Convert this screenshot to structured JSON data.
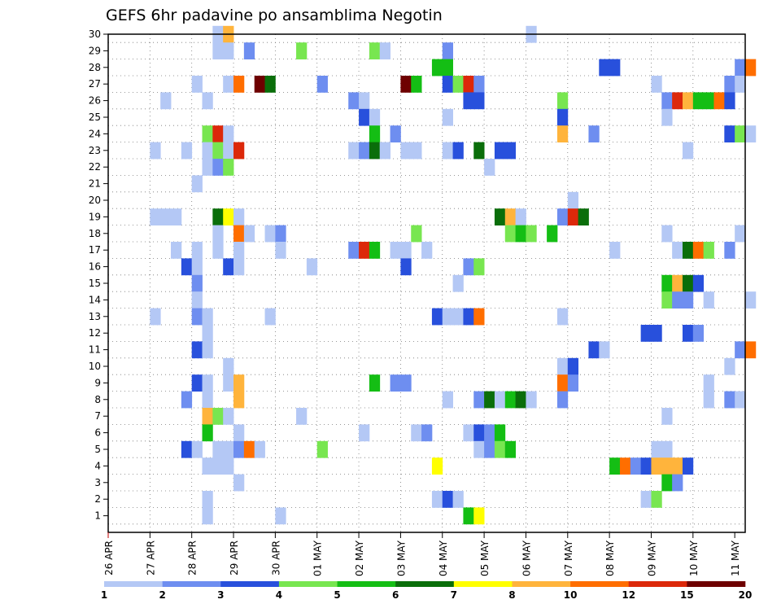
{
  "chart_data": {
    "type": "heatmap",
    "title": "GEFS 6hr padavine po ansamblima Negotin",
    "xlabel": "",
    "ylabel": "",
    "ylim": [
      0,
      30
    ],
    "y_ticks": [
      "1",
      "2",
      "3",
      "4",
      "5",
      "6",
      "7",
      "8",
      "9",
      "10",
      "11",
      "12",
      "13",
      "14",
      "15",
      "16",
      "17",
      "18",
      "19",
      "20",
      "21",
      "22",
      "23",
      "24",
      "25",
      "26",
      "27",
      "28",
      "29",
      "30"
    ],
    "x_labels": [
      "26 APR",
      "27 APR",
      "28 APR",
      "29 APR",
      "30 APR",
      "01 MAY",
      "02 MAY",
      "03 MAY",
      "04 MAY",
      "05 MAY",
      "06 MAY",
      "07 MAY",
      "08 MAY",
      "09 MAY",
      "10 MAY",
      "11 MAY"
    ],
    "x_unit": "6-hour step (4 per day)",
    "x_steps": 61,
    "grid": true,
    "legend": {
      "placement": "bottom",
      "colors": [
        "#b4c8f5",
        "#6e8ef0",
        "#2850dc",
        "#78e650",
        "#14be14",
        "#0a6e0a",
        "#ffff00",
        "#ffb43c",
        "#ff6e00",
        "#dc280a",
        "#6e0000"
      ],
      "boundaries": [
        "1",
        "2",
        "3",
        "4",
        "5",
        "6",
        "7",
        "8",
        "10",
        "12",
        "15",
        "20"
      ]
    },
    "cells": [
      [
        10,
        30,
        1
      ],
      [
        11,
        30,
        8
      ],
      [
        40,
        30,
        1
      ],
      [
        10,
        29,
        1
      ],
      [
        11,
        29,
        1
      ],
      [
        13,
        29,
        2
      ],
      [
        18,
        29,
        4
      ],
      [
        25,
        29,
        4
      ],
      [
        26,
        29,
        1
      ],
      [
        32,
        29,
        2
      ],
      [
        31,
        28,
        5
      ],
      [
        32,
        28,
        5
      ],
      [
        47,
        28,
        3
      ],
      [
        48,
        28,
        3
      ],
      [
        60,
        28,
        2
      ],
      [
        61,
        28,
        9
      ],
      [
        8,
        27,
        1
      ],
      [
        11,
        27,
        1
      ],
      [
        12,
        27,
        9
      ],
      [
        14,
        27,
        11
      ],
      [
        15,
        27,
        6
      ],
      [
        20,
        27,
        2
      ],
      [
        28,
        27,
        11
      ],
      [
        29,
        27,
        5
      ],
      [
        32,
        27,
        3
      ],
      [
        33,
        27,
        4
      ],
      [
        34,
        27,
        10
      ],
      [
        35,
        27,
        2
      ],
      [
        52,
        27,
        1
      ],
      [
        59,
        27,
        2
      ],
      [
        60,
        27,
        1
      ],
      [
        5,
        26,
        1
      ],
      [
        9,
        26,
        1
      ],
      [
        23,
        26,
        2
      ],
      [
        24,
        26,
        1
      ],
      [
        34,
        26,
        3
      ],
      [
        35,
        26,
        3
      ],
      [
        43,
        26,
        4
      ],
      [
        53,
        26,
        2
      ],
      [
        54,
        26,
        10
      ],
      [
        55,
        26,
        8
      ],
      [
        56,
        26,
        5
      ],
      [
        57,
        26,
        5
      ],
      [
        58,
        26,
        9
      ],
      [
        59,
        26,
        3
      ],
      [
        24,
        25,
        3
      ],
      [
        25,
        25,
        1
      ],
      [
        32,
        25,
        1
      ],
      [
        43,
        25,
        3
      ],
      [
        53,
        25,
        1
      ],
      [
        9,
        24,
        4
      ],
      [
        10,
        24,
        10
      ],
      [
        11,
        24,
        1
      ],
      [
        25,
        24,
        5
      ],
      [
        27,
        24,
        2
      ],
      [
        43,
        24,
        8
      ],
      [
        46,
        24,
        2
      ],
      [
        59,
        24,
        3
      ],
      [
        60,
        24,
        4
      ],
      [
        61,
        24,
        1
      ],
      [
        4,
        23,
        1
      ],
      [
        7,
        23,
        1
      ],
      [
        9,
        23,
        1
      ],
      [
        10,
        23,
        4
      ],
      [
        11,
        23,
        1
      ],
      [
        12,
        23,
        10
      ],
      [
        23,
        23,
        1
      ],
      [
        24,
        23,
        2
      ],
      [
        25,
        23,
        6
      ],
      [
        26,
        23,
        1
      ],
      [
        28,
        23,
        1
      ],
      [
        29,
        23,
        1
      ],
      [
        32,
        23,
        1
      ],
      [
        33,
        23,
        3
      ],
      [
        35,
        23,
        6
      ],
      [
        37,
        23,
        3
      ],
      [
        38,
        23,
        3
      ],
      [
        55,
        23,
        1
      ],
      [
        9,
        22,
        1
      ],
      [
        10,
        22,
        2
      ],
      [
        11,
        22,
        4
      ],
      [
        36,
        22,
        1
      ],
      [
        8,
        21,
        1
      ],
      [
        44,
        20,
        1
      ],
      [
        4,
        19,
        1
      ],
      [
        5,
        19,
        1
      ],
      [
        6,
        19,
        1
      ],
      [
        10,
        19,
        6
      ],
      [
        11,
        19,
        7
      ],
      [
        12,
        19,
        1
      ],
      [
        37,
        19,
        6
      ],
      [
        38,
        19,
        8
      ],
      [
        39,
        19,
        1
      ],
      [
        43,
        19,
        2
      ],
      [
        44,
        19,
        10
      ],
      [
        45,
        19,
        6
      ],
      [
        10,
        18,
        1
      ],
      [
        12,
        18,
        9
      ],
      [
        13,
        18,
        1
      ],
      [
        15,
        18,
        1
      ],
      [
        16,
        18,
        2
      ],
      [
        29,
        18,
        4
      ],
      [
        38,
        18,
        4
      ],
      [
        39,
        18,
        5
      ],
      [
        40,
        18,
        4
      ],
      [
        42,
        18,
        5
      ],
      [
        53,
        18,
        1
      ],
      [
        60,
        18,
        1
      ],
      [
        6,
        17,
        1
      ],
      [
        8,
        17,
        1
      ],
      [
        10,
        17,
        1
      ],
      [
        12,
        17,
        1
      ],
      [
        16,
        17,
        1
      ],
      [
        23,
        17,
        2
      ],
      [
        24,
        17,
        10
      ],
      [
        25,
        17,
        5
      ],
      [
        27,
        17,
        1
      ],
      [
        28,
        17,
        1
      ],
      [
        30,
        17,
        1
      ],
      [
        48,
        17,
        1
      ],
      [
        54,
        17,
        1
      ],
      [
        55,
        17,
        6
      ],
      [
        56,
        17,
        9
      ],
      [
        57,
        17,
        4
      ],
      [
        59,
        17,
        2
      ],
      [
        7,
        16,
        3
      ],
      [
        8,
        16,
        1
      ],
      [
        11,
        16,
        3
      ],
      [
        12,
        16,
        1
      ],
      [
        19,
        16,
        1
      ],
      [
        28,
        16,
        3
      ],
      [
        34,
        16,
        2
      ],
      [
        35,
        16,
        4
      ],
      [
        8,
        15,
        2
      ],
      [
        33,
        15,
        1
      ],
      [
        53,
        15,
        5
      ],
      [
        54,
        15,
        8
      ],
      [
        55,
        15,
        6
      ],
      [
        56,
        15,
        3
      ],
      [
        8,
        14,
        1
      ],
      [
        53,
        14,
        4
      ],
      [
        54,
        14,
        2
      ],
      [
        55,
        14,
        2
      ],
      [
        57,
        14,
        1
      ],
      [
        61,
        14,
        1
      ],
      [
        4,
        13,
        1
      ],
      [
        8,
        13,
        2
      ],
      [
        9,
        13,
        1
      ],
      [
        15,
        13,
        1
      ],
      [
        31,
        13,
        3
      ],
      [
        32,
        13,
        1
      ],
      [
        33,
        13,
        1
      ],
      [
        34,
        13,
        3
      ],
      [
        35,
        13,
        9
      ],
      [
        43,
        13,
        1
      ],
      [
        9,
        12,
        1
      ],
      [
        51,
        12,
        3
      ],
      [
        52,
        12,
        3
      ],
      [
        55,
        12,
        3
      ],
      [
        56,
        12,
        2
      ],
      [
        8,
        11,
        3
      ],
      [
        9,
        11,
        1
      ],
      [
        46,
        11,
        3
      ],
      [
        47,
        11,
        1
      ],
      [
        60,
        11,
        2
      ],
      [
        61,
        11,
        9
      ],
      [
        11,
        10,
        1
      ],
      [
        43,
        10,
        1
      ],
      [
        44,
        10,
        3
      ],
      [
        59,
        10,
        1
      ],
      [
        8,
        9,
        3
      ],
      [
        9,
        9,
        1
      ],
      [
        11,
        9,
        1
      ],
      [
        12,
        9,
        8
      ],
      [
        25,
        9,
        5
      ],
      [
        27,
        9,
        2
      ],
      [
        28,
        9,
        2
      ],
      [
        43,
        9,
        9
      ],
      [
        44,
        9,
        2
      ],
      [
        57,
        9,
        1
      ],
      [
        7,
        8,
        2
      ],
      [
        9,
        8,
        1
      ],
      [
        12,
        8,
        8
      ],
      [
        32,
        8,
        1
      ],
      [
        35,
        8,
        2
      ],
      [
        36,
        8,
        6
      ],
      [
        37,
        8,
        1
      ],
      [
        38,
        8,
        5
      ],
      [
        39,
        8,
        6
      ],
      [
        40,
        8,
        1
      ],
      [
        43,
        8,
        2
      ],
      [
        57,
        8,
        1
      ],
      [
        59,
        8,
        2
      ],
      [
        60,
        8,
        1
      ],
      [
        9,
        7,
        8
      ],
      [
        10,
        7,
        4
      ],
      [
        11,
        7,
        1
      ],
      [
        18,
        7,
        1
      ],
      [
        53,
        7,
        1
      ],
      [
        9,
        6,
        5
      ],
      [
        12,
        6,
        1
      ],
      [
        24,
        6,
        1
      ],
      [
        29,
        6,
        1
      ],
      [
        30,
        6,
        2
      ],
      [
        34,
        6,
        1
      ],
      [
        35,
        6,
        3
      ],
      [
        36,
        6,
        2
      ],
      [
        37,
        6,
        5
      ],
      [
        7,
        5,
        3
      ],
      [
        8,
        5,
        1
      ],
      [
        10,
        5,
        1
      ],
      [
        11,
        5,
        1
      ],
      [
        12,
        5,
        2
      ],
      [
        13,
        5,
        9
      ],
      [
        14,
        5,
        1
      ],
      [
        20,
        5,
        4
      ],
      [
        35,
        5,
        1
      ],
      [
        36,
        5,
        2
      ],
      [
        37,
        5,
        4
      ],
      [
        38,
        5,
        5
      ],
      [
        52,
        5,
        1
      ],
      [
        53,
        5,
        1
      ],
      [
        9,
        4,
        1
      ],
      [
        10,
        4,
        1
      ],
      [
        11,
        4,
        1
      ],
      [
        31,
        4,
        7
      ],
      [
        48,
        4,
        5
      ],
      [
        49,
        4,
        9
      ],
      [
        50,
        4,
        2
      ],
      [
        51,
        4,
        3
      ],
      [
        52,
        4,
        8
      ],
      [
        53,
        4,
        8
      ],
      [
        54,
        4,
        8
      ],
      [
        55,
        4,
        3
      ],
      [
        12,
        3,
        1
      ],
      [
        53,
        3,
        5
      ],
      [
        54,
        3,
        2
      ],
      [
        9,
        2,
        1
      ],
      [
        31,
        2,
        1
      ],
      [
        32,
        2,
        3
      ],
      [
        33,
        2,
        1
      ],
      [
        51,
        2,
        1
      ],
      [
        52,
        2,
        4
      ],
      [
        9,
        1,
        1
      ],
      [
        16,
        1,
        1
      ],
      [
        34,
        1,
        5
      ],
      [
        35,
        1,
        7
      ]
    ]
  }
}
